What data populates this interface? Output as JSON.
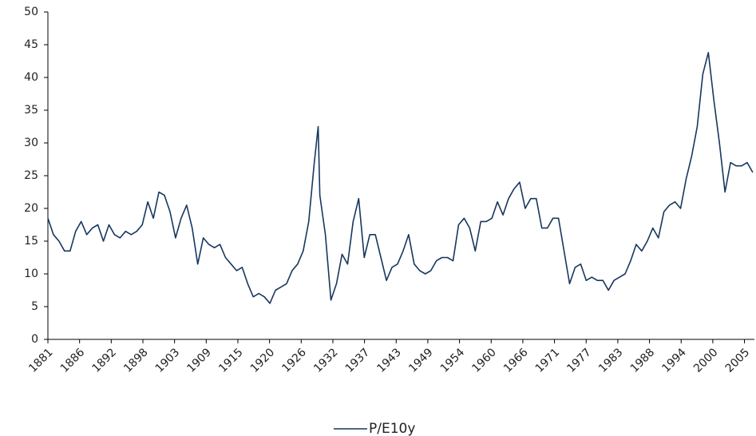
{
  "chart_data": {
    "type": "line",
    "x": [
      1881,
      1882,
      1883,
      1884,
      1885,
      1886,
      1887,
      1888,
      1889,
      1890,
      1891,
      1892,
      1893,
      1894,
      1895,
      1896,
      1897,
      1898,
      1899,
      1900,
      1901,
      1902,
      1903,
      1904,
      1905,
      1906,
      1907,
      1908,
      1909,
      1910,
      1911,
      1912,
      1913,
      1914,
      1915,
      1916,
      1917,
      1918,
      1919,
      1920,
      1921,
      1922,
      1923,
      1924,
      1925,
      1926,
      1927,
      1928,
      1929,
      1929.7,
      1930,
      1931,
      1932,
      1933,
      1934,
      1935,
      1936,
      1937,
      1938,
      1939,
      1940,
      1941,
      1942,
      1943,
      1944,
      1945,
      1946,
      1947,
      1948,
      1949,
      1950,
      1951,
      1952,
      1953,
      1954,
      1955,
      1956,
      1957,
      1958,
      1959,
      1960,
      1961,
      1962,
      1963,
      1964,
      1965,
      1966,
      1967,
      1968,
      1969,
      1970,
      1971,
      1972,
      1973,
      1974,
      1975,
      1976,
      1977,
      1978,
      1979,
      1980,
      1981,
      1982,
      1983,
      1984,
      1985,
      1986,
      1987,
      1988,
      1989,
      1990,
      1991,
      1992,
      1993,
      1994,
      1995,
      1996,
      1997,
      1998,
      1999,
      2000,
      2001,
      2002,
      2003,
      2004,
      2005,
      2006,
      2007,
      2008
    ],
    "series": [
      {
        "name": "P/E10y",
        "color": "#17375e",
        "values": [
          18.5,
          16,
          15,
          13.5,
          13.5,
          16.5,
          18,
          16,
          17,
          17.5,
          15,
          17.5,
          16,
          15.5,
          16.5,
          16,
          16.5,
          17.5,
          21,
          18.5,
          22.5,
          22,
          19.5,
          15.5,
          18.5,
          20.5,
          17,
          11.5,
          15.5,
          14.5,
          14,
          14.5,
          12.5,
          11.5,
          10.5,
          11,
          8.5,
          6.5,
          7,
          6.5,
          5.5,
          7.5,
          8,
          8.5,
          10.5,
          11.5,
          13.5,
          18,
          27,
          32.5,
          22,
          16,
          6,
          8.5,
          13,
          11.5,
          18,
          21.5,
          12.5,
          16,
          16,
          12.5,
          9,
          11,
          11.5,
          13.5,
          16,
          11.5,
          10.5,
          10,
          10.5,
          12,
          12.5,
          12.5,
          12,
          17.5,
          18.5,
          17,
          13.5,
          18,
          18,
          18.5,
          21,
          19,
          21.5,
          23,
          24,
          20,
          21.5,
          21.5,
          17,
          17,
          18.5,
          18.5,
          13.5,
          8.5,
          11,
          11.5,
          9,
          9.5,
          9,
          9,
          7.5,
          9,
          9.5,
          10,
          12,
          14.5,
          13.5,
          15,
          17,
          15.5,
          19.5,
          20.5,
          21,
          20,
          24.5,
          28,
          32.5,
          40.5,
          43.8,
          36.5,
          30,
          22.5,
          27,
          26.5,
          26.5,
          27,
          25.5
        ]
      }
    ],
    "xlim": [
      1881,
      2008.3
    ],
    "xticks": [
      {
        "value": 1881,
        "label": "1881"
      },
      {
        "value": 1886.705,
        "label": "1886"
      },
      {
        "value": 1892.41,
        "label": "1892"
      },
      {
        "value": 1898.115,
        "label": "1898"
      },
      {
        "value": 1903.82,
        "label": "1903"
      },
      {
        "value": 1909.525,
        "label": "1909"
      },
      {
        "value": 1915.23,
        "label": "1915"
      },
      {
        "value": 1920.935,
        "label": "1920"
      },
      {
        "value": 1926.64,
        "label": "1926"
      },
      {
        "value": 1932.345,
        "label": "1932"
      },
      {
        "value": 1938.05,
        "label": "1937"
      },
      {
        "value": 1943.755,
        "label": "1943"
      },
      {
        "value": 1949.46,
        "label": "1949"
      },
      {
        "value": 1955.165,
        "label": "1954"
      },
      {
        "value": 1960.87,
        "label": "1960"
      },
      {
        "value": 1966.575,
        "label": "1966"
      },
      {
        "value": 1972.28,
        "label": "1971"
      },
      {
        "value": 1977.985,
        "label": "1977"
      },
      {
        "value": 1983.69,
        "label": "1983"
      },
      {
        "value": 1989.395,
        "label": "1988"
      },
      {
        "value": 1995.1,
        "label": "1994"
      },
      {
        "value": 2000.805,
        "label": "2000"
      },
      {
        "value": 2006.51,
        "label": "2005"
      }
    ],
    "ylim": [
      0,
      50
    ],
    "yticks": [
      0,
      5,
      10,
      15,
      20,
      25,
      30,
      35,
      40,
      45,
      50
    ],
    "grid": false,
    "legend": "bottom"
  }
}
